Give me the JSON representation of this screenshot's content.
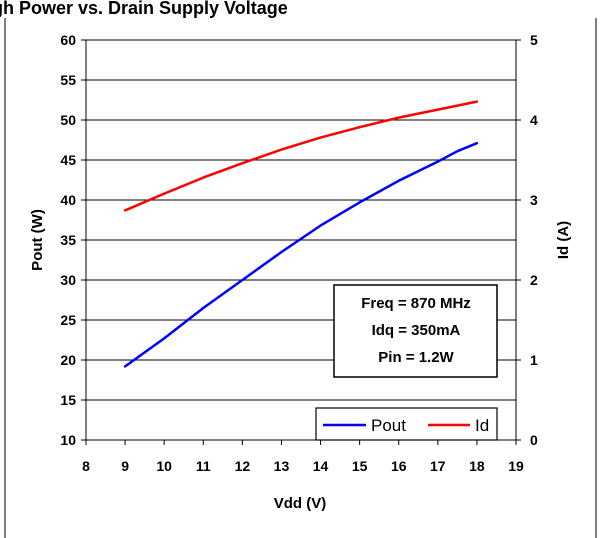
{
  "chart_data": {
    "type": "line",
    "title": "gh Power vs. Drain Supply Voltage",
    "xlabel": "Vdd (V)",
    "ylabel": "Pout (W)",
    "y2label": "Id (A)",
    "xlim": [
      8,
      19
    ],
    "ylim": [
      10,
      60
    ],
    "y2lim": [
      0,
      5
    ],
    "x_ticks": [
      "8",
      "9",
      "10",
      "11",
      "12",
      "13",
      "14",
      "15",
      "16",
      "17",
      "18",
      "19"
    ],
    "y_ticks": [
      "10",
      "15",
      "20",
      "25",
      "30",
      "35",
      "40",
      "45",
      "50",
      "55",
      "60"
    ],
    "y2_ticks": [
      "0",
      "1",
      "2",
      "3",
      "4",
      "5"
    ],
    "grid": "horizontal",
    "series": [
      {
        "name": "Pout",
        "axis": "left",
        "color": "#0000ff",
        "x": [
          9,
          10,
          11,
          12,
          13,
          14,
          15,
          16,
          17,
          17.5,
          18
        ],
        "values": [
          19.2,
          22.7,
          26.5,
          30.0,
          33.5,
          36.8,
          39.7,
          42.4,
          44.8,
          46.1,
          47.1
        ]
      },
      {
        "name": "Id",
        "axis": "right",
        "color": "#ff0000",
        "x": [
          9,
          10,
          11,
          12,
          13,
          14,
          15,
          16,
          17,
          18
        ],
        "values": [
          2.87,
          3.08,
          3.28,
          3.46,
          3.63,
          3.78,
          3.91,
          4.03,
          4.13,
          4.23
        ]
      }
    ],
    "annotation": [
      "Freq = 870 MHz",
      "Idq = 350mA",
      "Pin = 1.2W"
    ],
    "legend": {
      "position": "bottom-right",
      "entries": [
        "Pout",
        "Id"
      ]
    }
  }
}
